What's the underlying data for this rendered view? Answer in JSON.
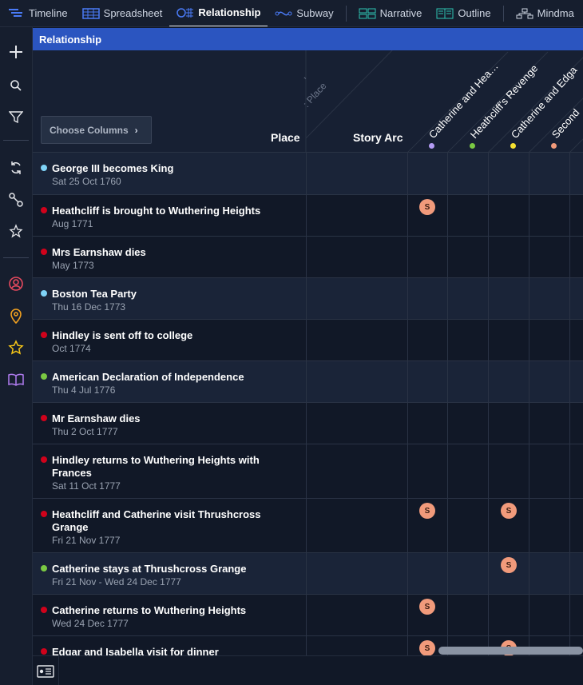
{
  "tabs": [
    {
      "label": "Timeline",
      "icon": "timeline-icon",
      "active": false
    },
    {
      "label": "Spreadsheet",
      "icon": "spreadsheet-icon",
      "active": false
    },
    {
      "label": "Relationship",
      "icon": "relationship-icon",
      "active": true
    },
    {
      "label": "Subway",
      "icon": "subway-icon",
      "active": false
    },
    {
      "label": "Narrative",
      "icon": "narrative-icon",
      "active": false
    },
    {
      "label": "Outline",
      "icon": "outline-icon",
      "active": false
    },
    {
      "label": "Mindma",
      "icon": "mindmap-icon",
      "active": false
    }
  ],
  "view_title": "Relationship",
  "choose_columns": "Choose Columns",
  "headers": {
    "place": "Place",
    "story_arc": "Story Arc"
  },
  "diagonal_muted": [
    ",",
    ": Place"
  ],
  "arcs": [
    {
      "label": "Catherine and Hea…",
      "color": "#b49cf5"
    },
    {
      "label": "Heathcliff's Revenge",
      "color": "#7ac943"
    },
    {
      "label": "Catherine and Edga",
      "color": "#f5e131"
    },
    {
      "label": "Second",
      "color": "#f19a7b"
    }
  ],
  "badge_label": "S",
  "events": [
    {
      "title": "George III becomes King",
      "date": "Sat 25 Oct 1760",
      "color": "#7fd3f7"
    },
    {
      "title": "Heathcliff is brought to Wuthering Heights",
      "date": "Aug 1771",
      "color": "#d0021b"
    },
    {
      "title": "Mrs Earnshaw dies",
      "date": "May 1773",
      "color": "#d0021b"
    },
    {
      "title": "Boston Tea Party",
      "date": "Thu 16 Dec 1773",
      "color": "#7fd3f7"
    },
    {
      "title": "Hindley is sent off to college",
      "date": "Oct 1774",
      "color": "#d0021b"
    },
    {
      "title": "American Declaration of Independence",
      "date": "Thu 4 Jul 1776",
      "color": "#7ac943"
    },
    {
      "title": "Mr Earnshaw dies",
      "date": "Thu 2 Oct 1777",
      "color": "#d0021b"
    },
    {
      "title": "Hindley returns to Wuthering Heights with Frances",
      "date": "Sat 11 Oct 1777",
      "color": "#d0021b"
    },
    {
      "title": "Heathcliff and Catherine visit Thrushcross Grange",
      "date": "Fri 21 Nov 1777",
      "color": "#d0021b"
    },
    {
      "title": "Catherine stays at Thrushcross Grange",
      "date": "Fri 21 Nov - Wed 24 Dec 1777",
      "color": "#7ac943"
    },
    {
      "title": "Catherine returns to Wuthering Heights",
      "date": "Wed 24 Dec 1777",
      "color": "#d0021b"
    },
    {
      "title": "Edgar and Isabella visit for dinner",
      "date": "",
      "color": "#d0021b"
    }
  ]
}
